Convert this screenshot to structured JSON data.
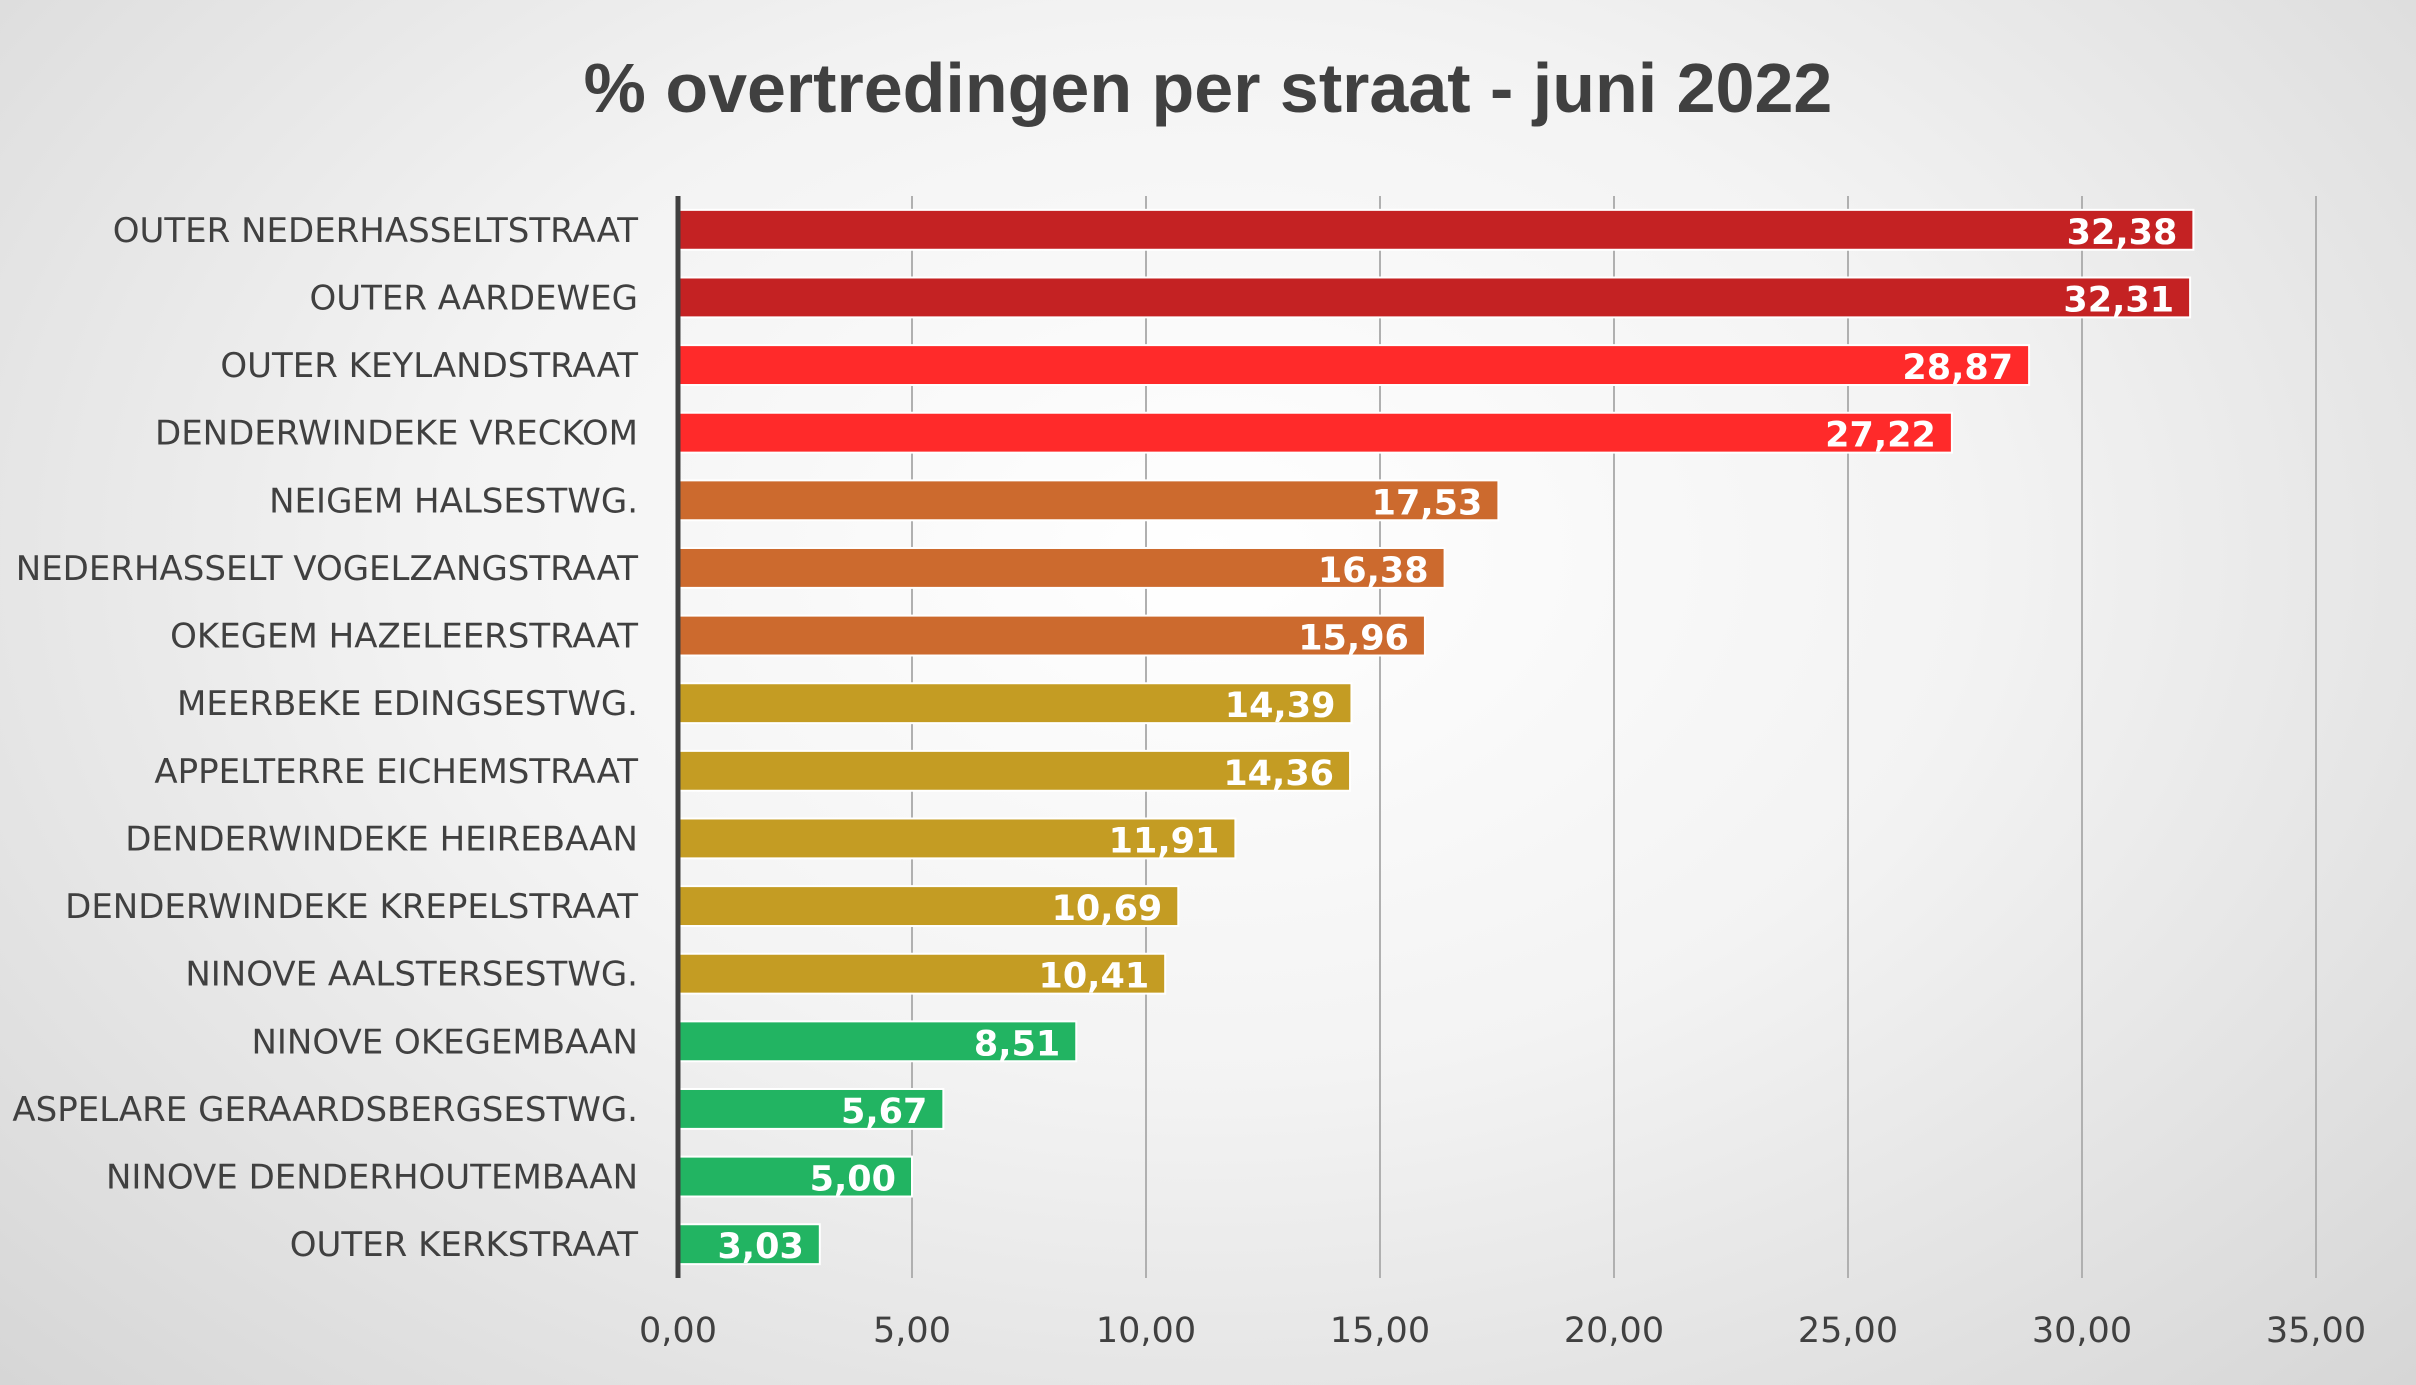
{
  "chart_data": {
    "type": "bar",
    "orientation": "horizontal",
    "title": "% overtredingen per straat - juni 2022",
    "categories": [
      "OUTER NEDERHASSELTSTRAAT",
      "OUTER AARDEWEG",
      "OUTER KEYLANDSTRAAT",
      "DENDERWINDEKE VRECKOM",
      "NEIGEM HALSESTWG.",
      "NEDERHASSELT VOGELZANGSTRAAT",
      "OKEGEM HAZELEERSTRAAT",
      "MEERBEKE EDINGSESTWG.",
      "APPELTERRE EICHEMSTRAAT",
      "DENDERWINDEKE HEIREBAAN",
      "DENDERWINDEKE KREPELSTRAAT",
      "NINOVE AALSTERSESTWG.",
      "NINOVE OKEGEMBAAN",
      "ASPELARE GERAARDSBERGSESTWG.",
      "NINOVE DENDERHOUTEMBAAN",
      "OUTER KERKSTRAAT"
    ],
    "values": [
      32.38,
      32.31,
      28.87,
      27.22,
      17.53,
      16.38,
      15.96,
      14.39,
      14.36,
      11.91,
      10.69,
      10.41,
      8.51,
      5.67,
      5.0,
      3.03
    ],
    "data_labels": [
      "32,38",
      "32,31",
      "28,87",
      "27,22",
      "17,53",
      "16,38",
      "15,96",
      "14,39",
      "14,36",
      "11,91",
      "10,69",
      "10,41",
      "8,51",
      "5,67",
      "5,00",
      "3,03"
    ],
    "bar_colors": [
      "#c42223",
      "#c42223",
      "#ff2a2a",
      "#ff2a2a",
      "#cc6a2e",
      "#cc6a2e",
      "#cc6a2e",
      "#c49c23",
      "#c49c23",
      "#c49c23",
      "#c49c23",
      "#c49c23",
      "#22b462",
      "#22b462",
      "#22b462",
      "#22b462"
    ],
    "xlim": [
      0,
      35
    ],
    "xticks": [
      0,
      5,
      10,
      15,
      20,
      25,
      30,
      35
    ],
    "xtick_labels": [
      "0,00",
      "5,00",
      "10,00",
      "15,00",
      "20,00",
      "25,00",
      "30,00",
      "35,00"
    ],
    "xlabel": "",
    "ylabel": "",
    "grid": "vertical",
    "legend": "none"
  }
}
